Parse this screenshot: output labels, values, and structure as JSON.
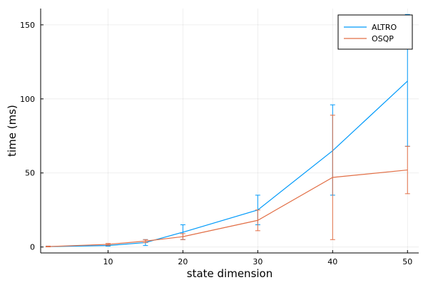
{
  "chart_data": {
    "type": "line",
    "title": "",
    "xlabel": "state dimension",
    "ylabel": "time (ms)",
    "xlim": [
      1,
      51.5
    ],
    "ylim": [
      -4,
      161
    ],
    "xticks": [
      10,
      20,
      30,
      40,
      50
    ],
    "yticks": [
      0,
      50,
      100,
      150
    ],
    "grid": true,
    "legend_position": "top-right",
    "x": [
      2,
      10,
      15,
      20,
      30,
      40,
      50
    ],
    "series": [
      {
        "name": "ALTRO",
        "color": "#009AFA",
        "values": [
          0.3,
          1.0,
          3.0,
          10.0,
          25.0,
          65.0,
          112.0
        ],
        "err_low": [
          0.1,
          0.6,
          1.0,
          5.0,
          15.0,
          35.0,
          68.0
        ],
        "err_high": [
          0.6,
          1.4,
          5.0,
          15.0,
          35.0,
          96.0,
          157.0
        ]
      },
      {
        "name": "OSQP",
        "color": "#E26F46",
        "values": [
          0.3,
          1.8,
          4.0,
          7.0,
          18.0,
          47.0,
          52.0
        ],
        "err_low": [
          0.1,
          1.2,
          3.0,
          5.0,
          11.0,
          5.0,
          36.0
        ],
        "err_high": [
          0.6,
          2.4,
          5.0,
          9.0,
          25.0,
          89.0,
          68.0
        ]
      }
    ]
  }
}
